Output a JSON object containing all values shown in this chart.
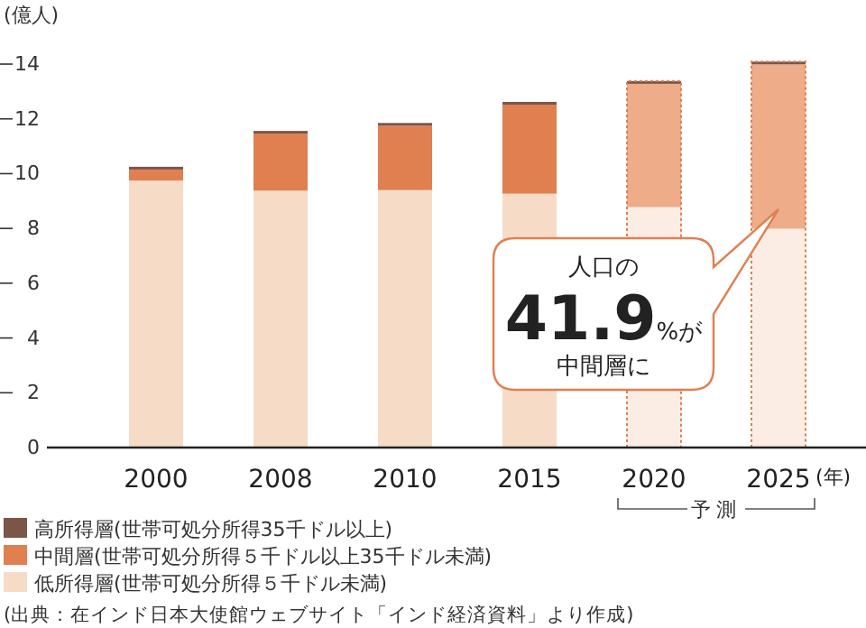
{
  "chart_data": {
    "type": "bar",
    "stacked": true,
    "ylabel": "(億人)",
    "xlabel": "(年)",
    "categories": [
      "2000",
      "2008",
      "2010",
      "2015",
      "2020",
      "2025"
    ],
    "series": [
      {
        "name": "低所得層(世帯可処分所得５千ドル未満)",
        "color": "#f6dcc7",
        "colors": [
          "#f6dcc7",
          "#f6dcc7",
          "#f6dcc7",
          "#f6dcc7",
          "#fbede3",
          "#fbede3"
        ],
        "values": [
          9.75,
          9.38,
          9.4,
          9.27,
          8.78,
          7.99
        ]
      },
      {
        "name": "中間層(世帯可処分所得５千ドル以上35千ドル未満)",
        "color": "#e07f50",
        "colors": [
          "#e07f50",
          "#e07f50",
          "#e07f50",
          "#e07f50",
          "#eeac88",
          "#eeac88"
        ],
        "values": [
          0.4,
          2.08,
          2.35,
          3.25,
          4.5,
          6.0
        ]
      },
      {
        "name": "高所得層(世帯可処分所得35千ドル以上)",
        "color": "#7a5548",
        "values": [
          0.1,
          0.1,
          0.1,
          0.1,
          0.1,
          0.1
        ]
      }
    ],
    "ylim": [
      0,
      14.1
    ],
    "yticks": [
      0,
      2,
      4,
      6,
      8,
      10,
      12,
      14
    ],
    "grid": false,
    "legend": "bottom",
    "annotations": [
      "人口の41.9%が中間層に",
      "予測",
      "(出典：在インド日本大使館ウェブサイト「インド経済資料」より作成)"
    ]
  }
}
